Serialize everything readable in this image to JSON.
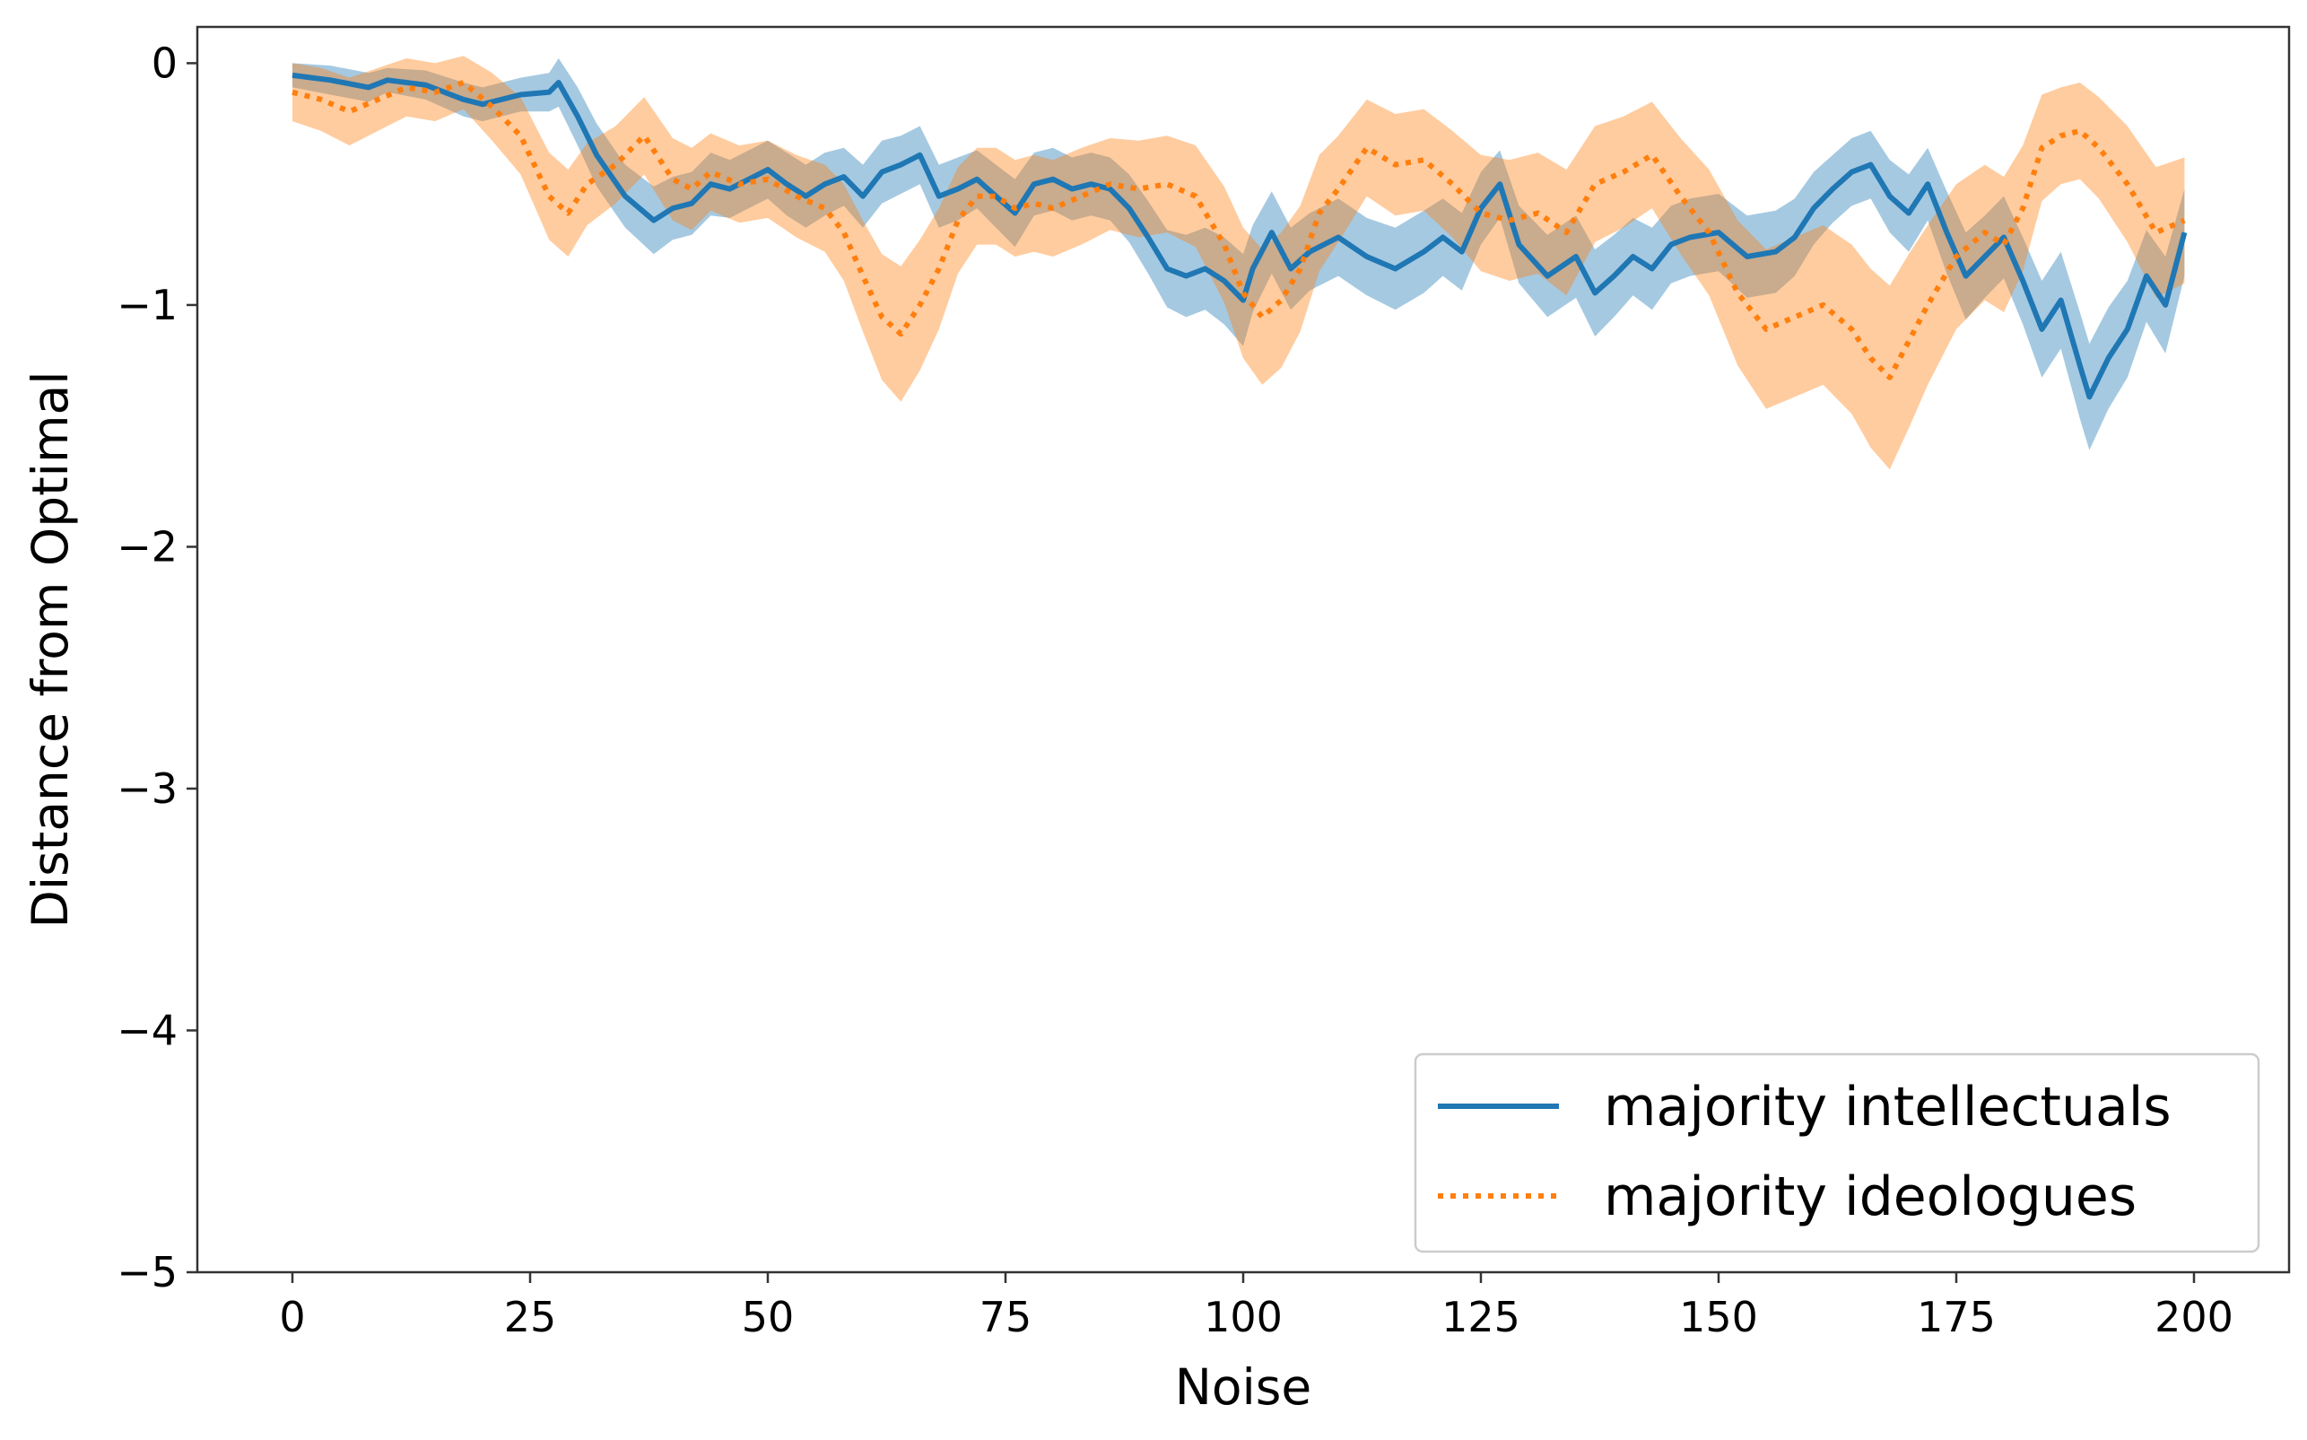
{
  "chart_data": {
    "type": "line",
    "xlabel": "Noise",
    "ylabel": "Distance from Optimal",
    "xlim": [
      -10,
      210
    ],
    "ylim": [
      -5,
      0.15
    ],
    "xticks": [
      0,
      25,
      50,
      75,
      100,
      125,
      150,
      175,
      200
    ],
    "xtick_labels": [
      "0",
      "25",
      "50",
      "75",
      "100",
      "125",
      "150",
      "175",
      "200"
    ],
    "yticks": [
      0,
      -1,
      -2,
      -3,
      -4,
      -5
    ],
    "ytick_labels": [
      "0",
      "−1",
      "−2",
      "−3",
      "−4",
      "−5"
    ],
    "grid": false,
    "legend_position": "lower-right",
    "series": [
      {
        "name": "majority intellectuals",
        "color": "#1f77b4",
        "style": "solid",
        "band_color": "#1f77b4",
        "x": [
          0,
          4,
          8,
          10,
          14,
          18,
          20,
          24,
          27,
          28,
          30,
          32,
          35,
          38,
          40,
          42,
          44,
          46,
          48,
          50,
          52,
          54,
          56,
          58,
          60,
          62,
          64,
          66,
          68,
          70,
          72,
          74,
          76,
          78,
          80,
          82,
          84,
          86,
          88,
          90,
          92,
          94,
          96,
          98,
          100,
          101,
          103,
          105,
          107,
          110,
          113,
          116,
          119,
          121,
          123,
          125,
          127,
          129,
          132,
          135,
          137,
          139,
          141,
          143,
          145,
          147,
          150,
          153,
          156,
          158,
          160,
          162,
          164,
          166,
          168,
          170,
          172,
          174,
          176,
          178,
          180,
          182,
          184,
          186,
          188,
          189,
          191,
          193,
          195,
          197,
          199
        ],
        "y": [
          -0.05,
          -0.07,
          -0.1,
          -0.07,
          -0.09,
          -0.15,
          -0.17,
          -0.13,
          -0.12,
          -0.08,
          -0.22,
          -0.38,
          -0.55,
          -0.65,
          -0.6,
          -0.58,
          -0.5,
          -0.52,
          -0.48,
          -0.44,
          -0.5,
          -0.55,
          -0.5,
          -0.47,
          -0.55,
          -0.45,
          -0.42,
          -0.38,
          -0.55,
          -0.52,
          -0.48,
          -0.55,
          -0.62,
          -0.5,
          -0.48,
          -0.52,
          -0.5,
          -0.52,
          -0.6,
          -0.72,
          -0.85,
          -0.88,
          -0.85,
          -0.9,
          -0.98,
          -0.85,
          -0.7,
          -0.85,
          -0.78,
          -0.72,
          -0.8,
          -0.85,
          -0.78,
          -0.72,
          -0.78,
          -0.6,
          -0.5,
          -0.75,
          -0.88,
          -0.8,
          -0.95,
          -0.88,
          -0.8,
          -0.85,
          -0.75,
          -0.72,
          -0.7,
          -0.8,
          -0.78,
          -0.72,
          -0.6,
          -0.52,
          -0.45,
          -0.42,
          -0.55,
          -0.62,
          -0.5,
          -0.7,
          -0.88,
          -0.8,
          -0.72,
          -0.9,
          -1.1,
          -0.98,
          -1.25,
          -1.38,
          -1.22,
          -1.1,
          -0.88,
          -1.0,
          -0.7
        ],
        "band_half_width": [
          0.05,
          0.06,
          0.06,
          0.05,
          0.06,
          0.07,
          0.07,
          0.07,
          0.08,
          0.1,
          0.12,
          0.13,
          0.13,
          0.14,
          0.13,
          0.13,
          0.13,
          0.12,
          0.12,
          0.12,
          0.13,
          0.13,
          0.13,
          0.12,
          0.13,
          0.13,
          0.12,
          0.12,
          0.13,
          0.13,
          0.12,
          0.13,
          0.14,
          0.13,
          0.13,
          0.13,
          0.13,
          0.13,
          0.14,
          0.15,
          0.16,
          0.17,
          0.17,
          0.18,
          0.19,
          0.18,
          0.17,
          0.17,
          0.16,
          0.16,
          0.16,
          0.17,
          0.17,
          0.16,
          0.16,
          0.15,
          0.14,
          0.16,
          0.17,
          0.17,
          0.18,
          0.17,
          0.16,
          0.17,
          0.16,
          0.16,
          0.16,
          0.17,
          0.17,
          0.16,
          0.15,
          0.14,
          0.14,
          0.14,
          0.15,
          0.16,
          0.15,
          0.17,
          0.18,
          0.17,
          0.17,
          0.18,
          0.2,
          0.2,
          0.22,
          0.22,
          0.21,
          0.2,
          0.19,
          0.2,
          0.18
        ]
      },
      {
        "name": "majority ideologues",
        "color": "#ff7f0e",
        "style": "dotted",
        "band_color": "#ff7f0e",
        "x": [
          0,
          3,
          6,
          9,
          12,
          15,
          18,
          21,
          24,
          27,
          29,
          31,
          34,
          37,
          40,
          42,
          44,
          47,
          50,
          53,
          56,
          58,
          60,
          62,
          64,
          66,
          68,
          70,
          72,
          74,
          76,
          78,
          80,
          83,
          86,
          89,
          92,
          95,
          98,
          100,
          102,
          104,
          106,
          108,
          110,
          113,
          116,
          119,
          122,
          125,
          128,
          131,
          134,
          137,
          140,
          143,
          146,
          149,
          152,
          155,
          158,
          161,
          164,
          166,
          168,
          170,
          172,
          175,
          178,
          180,
          182,
          184,
          186,
          188,
          190,
          193,
          196,
          199
        ],
        "y": [
          -0.12,
          -0.15,
          -0.2,
          -0.15,
          -0.1,
          -0.12,
          -0.08,
          -0.18,
          -0.3,
          -0.55,
          -0.62,
          -0.5,
          -0.42,
          -0.3,
          -0.48,
          -0.52,
          -0.45,
          -0.5,
          -0.48,
          -0.55,
          -0.6,
          -0.7,
          -0.88,
          -1.05,
          -1.12,
          -1.0,
          -0.85,
          -0.65,
          -0.55,
          -0.55,
          -0.6,
          -0.58,
          -0.6,
          -0.55,
          -0.5,
          -0.52,
          -0.5,
          -0.55,
          -0.75,
          -0.95,
          -1.05,
          -0.98,
          -0.85,
          -0.62,
          -0.52,
          -0.35,
          -0.42,
          -0.4,
          -0.5,
          -0.62,
          -0.65,
          -0.62,
          -0.7,
          -0.5,
          -0.45,
          -0.38,
          -0.55,
          -0.7,
          -0.95,
          -1.1,
          -1.05,
          -1.0,
          -1.1,
          -1.22,
          -1.3,
          -1.15,
          -1.0,
          -0.8,
          -0.7,
          -0.75,
          -0.6,
          -0.35,
          -0.3,
          -0.28,
          -0.35,
          -0.5,
          -0.7,
          -0.65
        ],
        "band_half_width": [
          0.12,
          0.13,
          0.14,
          0.13,
          0.12,
          0.12,
          0.11,
          0.14,
          0.16,
          0.18,
          0.18,
          0.17,
          0.16,
          0.16,
          0.17,
          0.17,
          0.16,
          0.16,
          0.16,
          0.17,
          0.18,
          0.2,
          0.23,
          0.26,
          0.28,
          0.27,
          0.25,
          0.22,
          0.2,
          0.2,
          0.2,
          0.2,
          0.2,
          0.2,
          0.19,
          0.2,
          0.2,
          0.21,
          0.24,
          0.27,
          0.28,
          0.28,
          0.26,
          0.24,
          0.22,
          0.2,
          0.21,
          0.21,
          0.22,
          0.24,
          0.25,
          0.25,
          0.26,
          0.24,
          0.23,
          0.22,
          0.24,
          0.26,
          0.3,
          0.33,
          0.33,
          0.33,
          0.35,
          0.37,
          0.38,
          0.36,
          0.33,
          0.3,
          0.28,
          0.28,
          0.26,
          0.22,
          0.2,
          0.2,
          0.21,
          0.24,
          0.27,
          0.26
        ]
      }
    ]
  }
}
